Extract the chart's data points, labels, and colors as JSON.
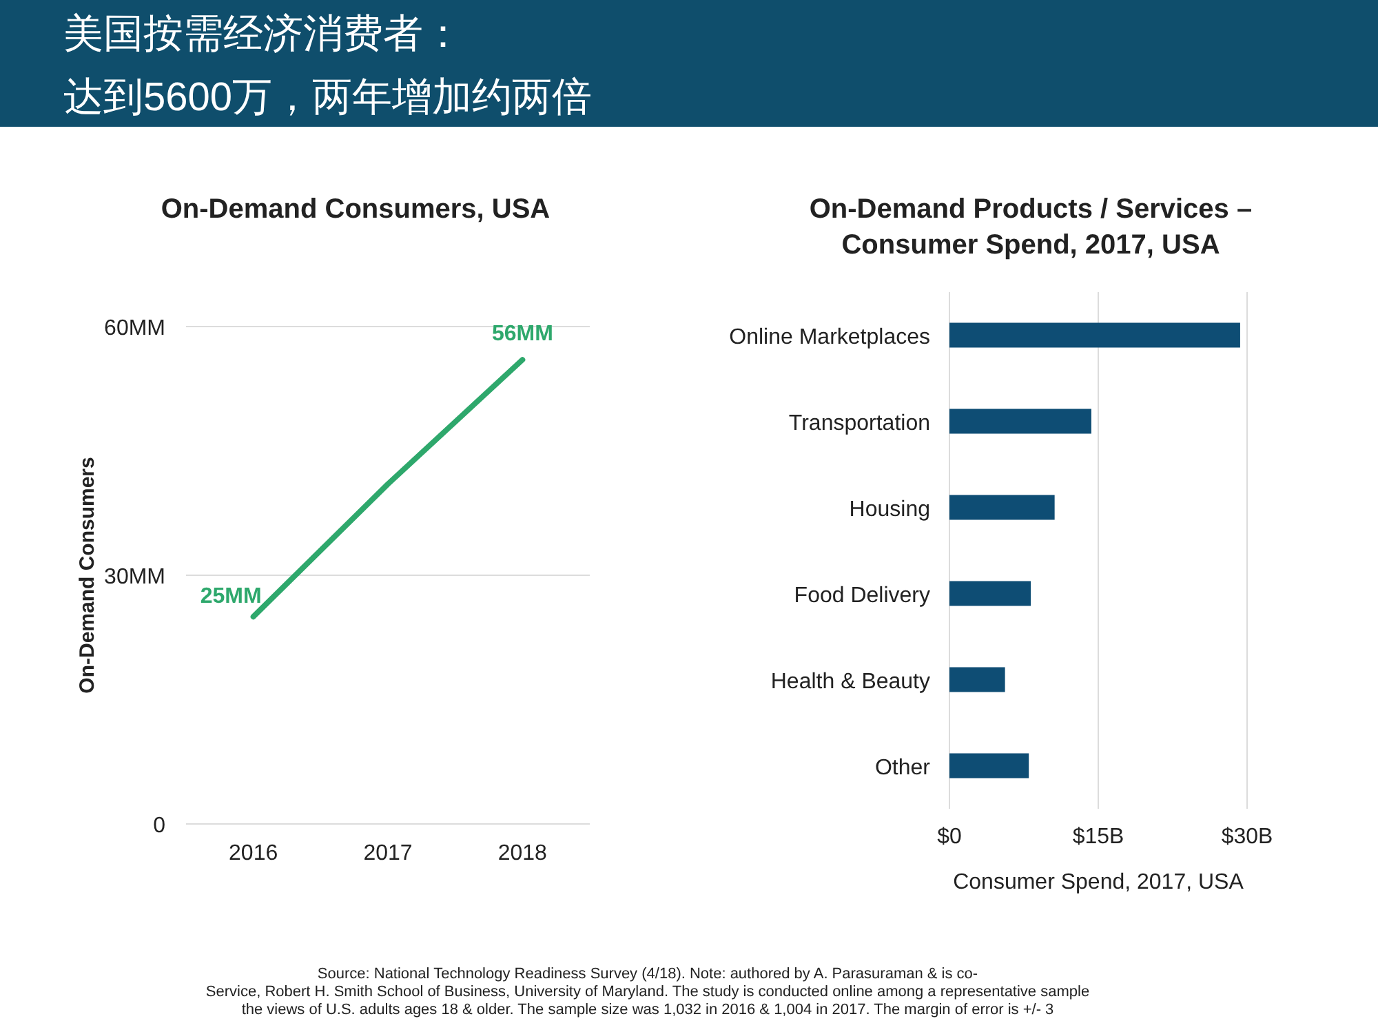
{
  "chart_data": [
    {
      "type": "other",
      "title": "美国按需经济消费者：",
      "subtitle": "达到5600万，两年增加约两倍",
      "annotations": [
        "Source: National Technology Readiness Survey (4/18). Note: authored by A. Parasuraman & is co-\nService, Robert H. Smith School of Business, University of Maryland.  The study is conducted online among a representative sample\nthe views of U.S. adults ages 18 & older.  The sample size was 1,032 in 2016 & 1,004 in 2017.  The margin of error is +/- 3"
      ]
    },
    {
      "type": "line",
      "title": "On-Demand Consumers, USA",
      "ylabel": "On-Demand Consumers",
      "categories": [
        "2016",
        "2017",
        "2018"
      ],
      "series": [
        {
          "color": "#2ea86c",
          "values": [
            25,
            41,
            56
          ],
          "value_labels": [
            "25MM",
            null,
            "56MM"
          ]
        }
      ],
      "ylim": [
        0,
        60
      ],
      "yticks": [
        0,
        {
          "value": 30,
          "label": "30MM"
        },
        {
          "value": 60,
          "label": "60MM"
        }
      ],
      "grid": "y"
    },
    {
      "type": "bar",
      "orientation": "horizontal",
      "title": "On-Demand Products / Services –\nConsumer Spend, 2017, USA",
      "xlabel": "Consumer Spend, 2017, USA",
      "categories": [
        "Online Marketplaces",
        "Transportation",
        "Housing",
        "Food Delivery",
        "Health & Beauty",
        "Other"
      ],
      "values": [
        29.3,
        14.3,
        10.6,
        8.2,
        5.6,
        8.0
      ],
      "color": "#0e4d74",
      "xlim": [
        0,
        30
      ],
      "xticks": [
        {
          "value": 0,
          "label": "$0"
        },
        {
          "value": 15,
          "label": "$15B"
        },
        {
          "value": 30,
          "label": "$30B"
        }
      ],
      "grid": "x"
    }
  ]
}
